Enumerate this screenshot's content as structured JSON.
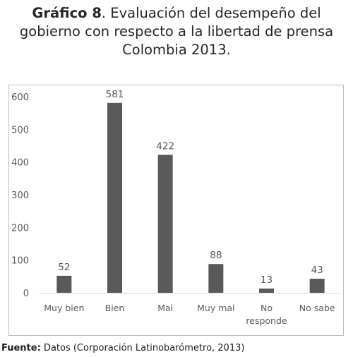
{
  "title": {
    "label": "Gráfico 8",
    "line1_rest": ". Evaluación del desempeño del",
    "line2": "gobierno con respecto a la libertad de prensa",
    "line3": "Colombia 2013."
  },
  "source": {
    "label": "Fuente:",
    "text": " Datos (Corporación Latinobarómetro, 2013)"
  },
  "colors": {
    "bar": "#595959",
    "axis_text": "#595959",
    "grid": "#d9d9d9"
  },
  "chart_data": {
    "type": "bar",
    "title": "",
    "xlabel": "",
    "ylabel": "",
    "categories": [
      "Muy bien",
      "Bien",
      "Mal",
      "Muy mal",
      "No responde",
      "No sabe"
    ],
    "category_lines": [
      [
        "Muy bien"
      ],
      [
        "Bien"
      ],
      [
        "Mal"
      ],
      [
        "Muy mal"
      ],
      [
        "No",
        "responde"
      ],
      [
        "No sabe"
      ]
    ],
    "values": [
      52,
      581,
      422,
      88,
      13,
      43
    ],
    "ylim": [
      0,
      600
    ],
    "yticks": [
      0,
      100,
      200,
      300,
      400,
      500,
      600
    ],
    "grid": false,
    "legend": "none",
    "data_labels": true
  }
}
